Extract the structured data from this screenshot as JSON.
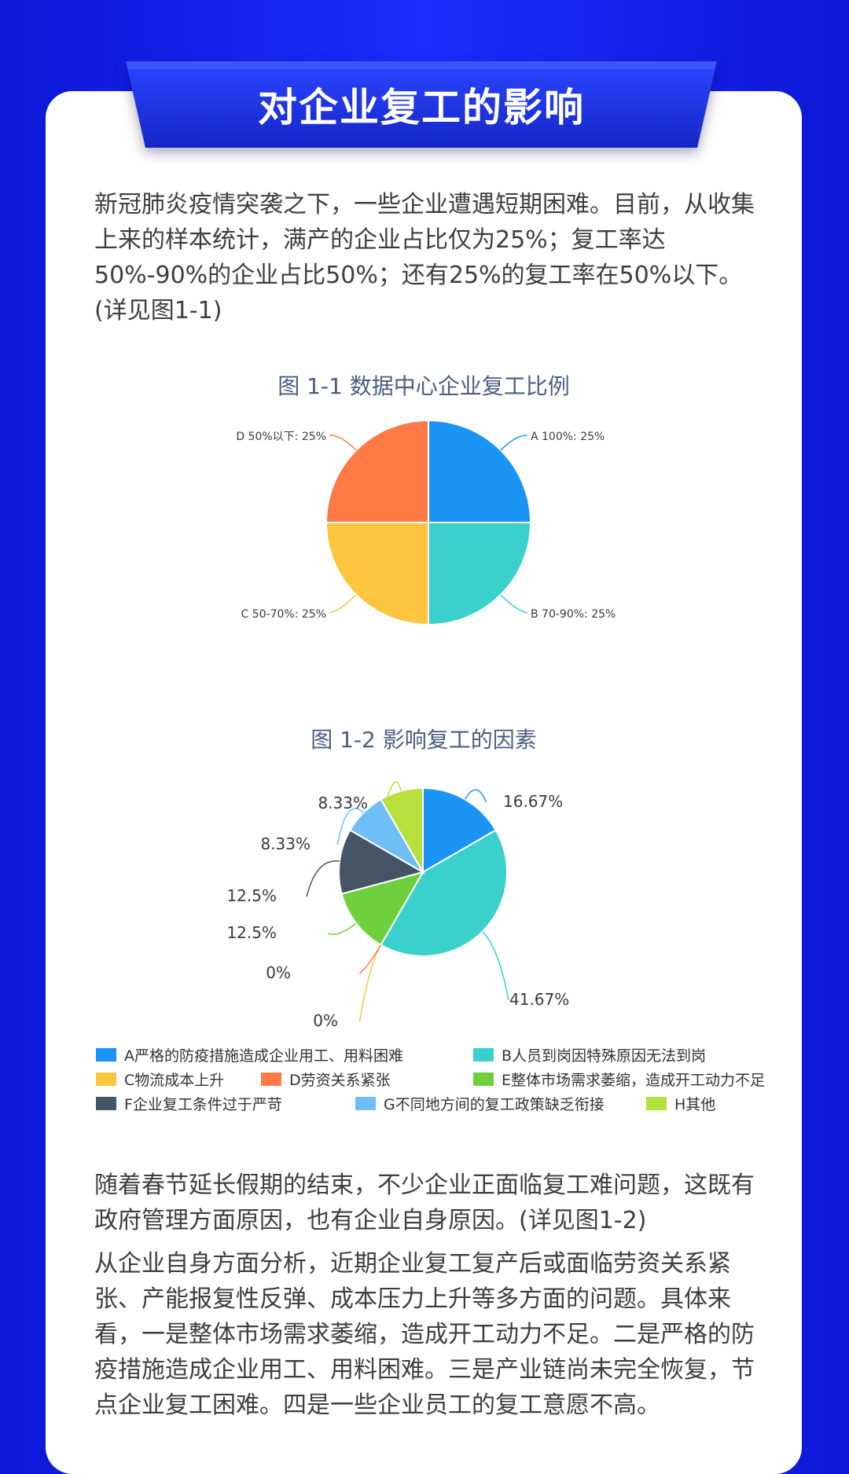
{
  "colors": {
    "background": "#1b2dff",
    "banner": "#1a2fd0",
    "text": "#3e3e3e",
    "chart_title": "#4a5e80"
  },
  "banner": {
    "title": "对企业复工的影响"
  },
  "intro_text": "新冠肺炎疫情突袭之下，一些企业遭遇短期困难。目前，从收集上来的样本统计，满产的企业占比仅为25%；复工率达50%-90%的企业占比50%；还有25%的复工率在50%以下。(详见图1-1)",
  "outro_text_1": "随着春节延长假期的结束，不少企业正面临复工难问题，这既有政府管理方面原因，也有企业自身原因。(详见图1-2)",
  "outro_text_2": "从企业自身方面分析，近期企业复工复产后或面临劳资关系紧张、产能报复性反弹、成本压力上升等多方面的问题。具体来看，一是整体市场需求萎缩，造成开工动力不足。二是严格的防疫措施造成企业用工、用料困难。三是产业链尚未完全恢复，节点企业复工困难。四是一些企业员工的复工意愿不高。",
  "chart_data": [
    {
      "type": "pie",
      "title": "图 1-1 数据中心企业复工比例",
      "labels": [
        "A 100%",
        "B 70-90%",
        "C 50-70%",
        "D 50%以下"
      ],
      "values": [
        25,
        25,
        25,
        25
      ],
      "data_labels": [
        "A 100%: 25%",
        "B 70-90%: 25%",
        "C 50-70%: 25%",
        "D 50%以下: 25%"
      ],
      "colors": [
        "#1a94f5",
        "#3ad0cc",
        "#fec53f",
        "#ff7a45"
      ]
    },
    {
      "type": "pie",
      "title": "图 1-2 影响复工的因素",
      "labels": [
        "A严格的防疫措施造成企业用工、用料困难",
        "B人员到岗因特殊原因无法到岗",
        "C物流成本上升",
        "D劳资关系紧张",
        "E整体市场需求萎缩，造成开工动力不足",
        "F企业复工条件过于严苛",
        "G不同地方间的复工政策缺乏衔接",
        "H其他"
      ],
      "values": [
        16.67,
        41.67,
        0,
        0,
        12.5,
        12.5,
        8.33,
        8.33
      ],
      "data_labels": [
        "16.67%",
        "41.67%",
        "0%",
        "0%",
        "12.5%",
        "12.5%",
        "8.33%",
        "8.33%"
      ],
      "colors": [
        "#1a94f5",
        "#3ad0cc",
        "#fec53f",
        "#ff7a45",
        "#6fd03e",
        "#465566",
        "#6ebef8",
        "#b6e03c"
      ],
      "legend_position": "bottom"
    }
  ]
}
